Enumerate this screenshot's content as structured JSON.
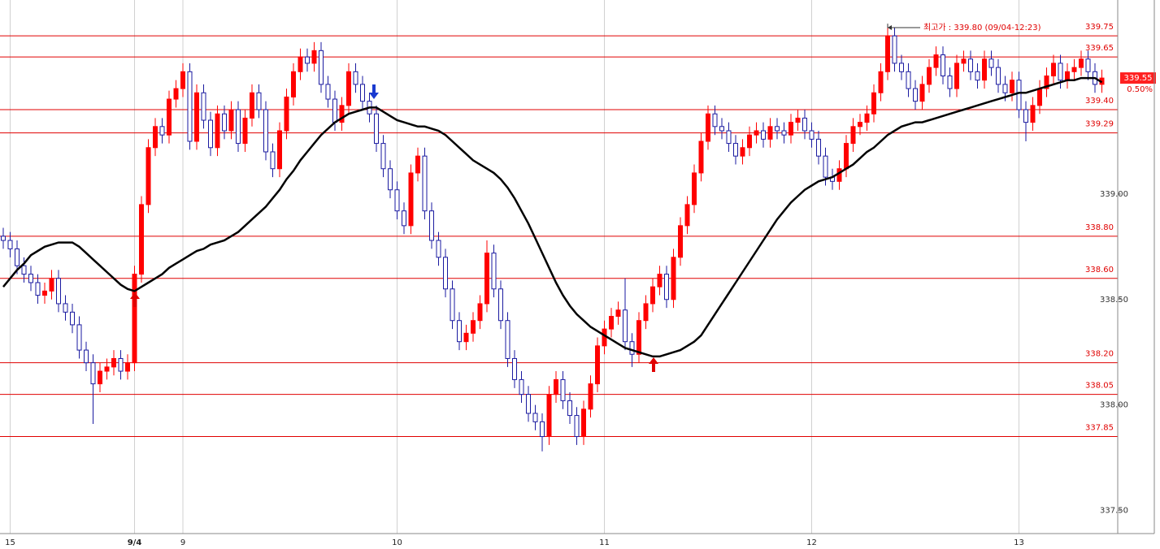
{
  "chart_data": {
    "type": "candlestick",
    "up_color": "#ff0000",
    "down_color": "#1a1aa0",
    "level_color": "#e00000",
    "ylim": [
      337.39,
      339.92
    ],
    "yticks": [
      {
        "value": 337.5,
        "label": "337.50"
      },
      {
        "value": 338.0,
        "label": "338.00"
      },
      {
        "value": 338.5,
        "label": "338.50"
      },
      {
        "value": 339.0,
        "label": "339.00"
      }
    ],
    "levels": [
      {
        "value": 339.75,
        "label": "339.75"
      },
      {
        "value": 339.65,
        "label": "339.65"
      },
      {
        "value": 339.4,
        "label": "339.40"
      },
      {
        "value": 339.29,
        "label": "339.29"
      },
      {
        "value": 338.8,
        "label": "338.80"
      },
      {
        "value": 338.6,
        "label": "338.60"
      },
      {
        "value": 338.2,
        "label": "338.20"
      },
      {
        "value": 338.05,
        "label": "338.05"
      },
      {
        "value": 337.85,
        "label": "337.85"
      }
    ],
    "last_price": {
      "value": 339.55,
      "label": "339.55"
    },
    "change_label": "0.50%",
    "annotation": "최고가 : 339.80 (09/04-12:23)",
    "grid": true,
    "categories": [
      null,
      "15",
      null,
      null,
      null,
      null,
      null,
      null,
      null,
      null,
      null,
      null,
      null,
      null,
      null,
      null,
      null,
      null,
      null,
      "9/4",
      null,
      null,
      null,
      null,
      null,
      null,
      "9",
      null,
      null,
      null,
      null,
      null,
      null,
      null,
      null,
      null,
      null,
      null,
      null,
      null,
      null,
      null,
      null,
      null,
      null,
      null,
      null,
      null,
      null,
      null,
      null,
      null,
      null,
      null,
      null,
      null,
      null,
      "10",
      null,
      null,
      null,
      null,
      null,
      null,
      null,
      null,
      null,
      null,
      null,
      null,
      null,
      null,
      null,
      null,
      null,
      null,
      null,
      null,
      null,
      null,
      null,
      null,
      null,
      null,
      null,
      null,
      null,
      "11",
      null,
      null,
      null,
      null,
      null,
      null,
      null,
      null,
      null,
      null,
      null,
      null,
      null,
      null,
      null,
      null,
      null,
      null,
      null,
      null,
      null,
      null,
      null,
      null,
      null,
      null,
      null,
      null,
      null,
      "12",
      null,
      null,
      null,
      null,
      null,
      null,
      null,
      null,
      null,
      null,
      null,
      null,
      null,
      null,
      null,
      null,
      null,
      null,
      null,
      null,
      null,
      null,
      null,
      null,
      null,
      null,
      null,
      null,
      null,
      "13",
      null,
      null,
      null,
      null,
      null,
      null,
      null,
      null,
      null,
      null,
      null,
      null
    ],
    "open": [
      338.8,
      338.78,
      338.74,
      338.66,
      338.62,
      338.58,
      338.52,
      338.54,
      338.6,
      338.48,
      338.44,
      338.38,
      338.26,
      338.2,
      338.1,
      338.16,
      338.18,
      338.22,
      338.16,
      338.2,
      338.62,
      338.95,
      339.22,
      339.32,
      339.28,
      339.45,
      339.5,
      339.58,
      339.25,
      339.48,
      339.35,
      339.22,
      339.38,
      339.3,
      339.4,
      339.24,
      339.36,
      339.48,
      339.4,
      339.2,
      339.12,
      339.3,
      339.46,
      339.58,
      339.65,
      339.62,
      339.68,
      339.52,
      339.45,
      339.34,
      339.42,
      339.58,
      339.52,
      339.44,
      339.38,
      339.24,
      339.12,
      339.02,
      338.92,
      338.85,
      339.1,
      339.18,
      338.92,
      338.78,
      338.7,
      338.55,
      338.4,
      338.3,
      338.34,
      338.4,
      338.48,
      338.72,
      338.55,
      338.4,
      338.22,
      338.12,
      338.05,
      337.96,
      337.92,
      337.85,
      338.05,
      338.12,
      338.02,
      337.95,
      337.85,
      337.98,
      338.1,
      338.28,
      338.36,
      338.42,
      338.45,
      338.3,
      338.24,
      338.4,
      338.48,
      338.56,
      338.62,
      338.5,
      338.7,
      338.85,
      338.95,
      339.1,
      339.25,
      339.38,
      339.32,
      339.3,
      339.24,
      339.18,
      339.22,
      339.28,
      339.3,
      339.26,
      339.32,
      339.3,
      339.28,
      339.34,
      339.36,
      339.3,
      339.26,
      339.18,
      339.08,
      339.06,
      339.12,
      339.24,
      339.32,
      339.34,
      339.38,
      339.48,
      339.58,
      339.75,
      339.62,
      339.58,
      339.5,
      339.44,
      339.52,
      339.6,
      339.66,
      339.56,
      339.5,
      339.62,
      339.64,
      339.58,
      339.54,
      339.64,
      339.6,
      339.52,
      339.48,
      339.54,
      339.4,
      339.34,
      339.42,
      339.5,
      339.56,
      339.62,
      339.54,
      339.58,
      339.6,
      339.64,
      339.58,
      339.52
    ],
    "high": [
      338.84,
      338.82,
      338.78,
      338.7,
      338.66,
      338.62,
      338.58,
      338.64,
      338.64,
      338.52,
      338.48,
      338.42,
      338.3,
      338.24,
      338.2,
      338.22,
      338.26,
      338.26,
      338.24,
      338.66,
      338.99,
      339.26,
      339.36,
      339.36,
      339.49,
      339.54,
      339.62,
      339.62,
      339.52,
      339.52,
      339.39,
      339.42,
      339.42,
      339.44,
      339.44,
      339.4,
      339.52,
      339.52,
      339.44,
      339.24,
      339.34,
      339.5,
      339.62,
      339.69,
      339.69,
      339.72,
      339.72,
      339.56,
      339.49,
      339.46,
      339.62,
      339.62,
      339.56,
      339.48,
      339.42,
      339.28,
      339.16,
      339.06,
      338.96,
      339.14,
      339.22,
      339.22,
      338.96,
      338.82,
      338.74,
      338.59,
      338.44,
      338.38,
      338.44,
      338.52,
      338.78,
      338.76,
      338.59,
      338.44,
      338.26,
      338.16,
      338.09,
      338.0,
      337.96,
      338.09,
      338.16,
      338.16,
      338.06,
      337.99,
      338.02,
      338.14,
      338.32,
      338.4,
      338.46,
      338.49,
      338.6,
      338.34,
      338.44,
      338.52,
      338.6,
      338.66,
      338.66,
      338.74,
      338.89,
      338.99,
      339.14,
      339.29,
      339.42,
      339.42,
      339.36,
      339.34,
      339.28,
      339.26,
      339.32,
      339.34,
      339.34,
      339.36,
      339.36,
      339.34,
      339.38,
      339.4,
      339.4,
      339.34,
      339.3,
      339.22,
      339.12,
      339.16,
      339.28,
      339.36,
      339.38,
      339.42,
      339.52,
      339.62,
      339.8,
      339.79,
      339.66,
      339.62,
      339.54,
      339.56,
      339.64,
      339.7,
      339.7,
      339.6,
      339.66,
      339.68,
      339.68,
      339.62,
      339.68,
      339.68,
      339.64,
      339.56,
      339.58,
      339.58,
      339.44,
      339.46,
      339.54,
      339.6,
      339.66,
      339.66,
      339.62,
      339.64,
      339.68,
      339.68,
      339.62,
      339.59
    ],
    "low": [
      338.74,
      338.7,
      338.62,
      338.58,
      338.54,
      338.48,
      338.48,
      338.5,
      338.44,
      338.4,
      338.34,
      338.22,
      338.16,
      337.91,
      338.06,
      338.12,
      338.14,
      338.12,
      338.12,
      338.16,
      338.58,
      338.91,
      339.18,
      339.24,
      339.24,
      339.41,
      339.46,
      339.21,
      339.21,
      339.31,
      339.18,
      339.18,
      339.26,
      339.26,
      339.2,
      339.2,
      339.32,
      339.36,
      339.16,
      339.08,
      339.08,
      339.26,
      339.42,
      339.54,
      339.58,
      339.58,
      339.48,
      339.41,
      339.3,
      339.3,
      339.38,
      339.48,
      339.4,
      339.34,
      339.2,
      339.08,
      338.98,
      338.88,
      338.81,
      338.81,
      339.06,
      338.88,
      338.74,
      338.66,
      338.51,
      338.36,
      338.26,
      338.26,
      338.3,
      338.36,
      338.44,
      338.51,
      338.36,
      338.18,
      338.08,
      338.01,
      337.92,
      337.88,
      337.78,
      337.81,
      338.01,
      337.98,
      337.91,
      337.81,
      337.81,
      337.94,
      338.06,
      338.24,
      338.32,
      338.38,
      338.26,
      338.18,
      338.2,
      338.36,
      338.44,
      338.52,
      338.46,
      338.46,
      338.66,
      338.81,
      338.91,
      339.06,
      339.21,
      339.28,
      339.26,
      339.2,
      339.14,
      339.14,
      339.18,
      339.24,
      339.22,
      339.22,
      339.26,
      339.24,
      339.24,
      339.3,
      339.26,
      339.22,
      339.14,
      339.04,
      339.02,
      339.02,
      339.08,
      339.2,
      339.28,
      339.3,
      339.34,
      339.44,
      339.54,
      339.58,
      339.54,
      339.46,
      339.4,
      339.4,
      339.48,
      339.56,
      339.52,
      339.46,
      339.46,
      339.58,
      339.54,
      339.5,
      339.5,
      339.56,
      339.48,
      339.44,
      339.44,
      339.36,
      339.25,
      339.3,
      339.38,
      339.46,
      339.52,
      339.5,
      339.5,
      339.54,
      339.56,
      339.54,
      339.48,
      339.48
    ],
    "close": [
      338.78,
      338.74,
      338.66,
      338.62,
      338.58,
      338.52,
      338.54,
      338.6,
      338.48,
      338.44,
      338.38,
      338.26,
      338.2,
      338.1,
      338.16,
      338.18,
      338.22,
      338.16,
      338.2,
      338.62,
      338.95,
      339.22,
      339.32,
      339.28,
      339.45,
      339.5,
      339.58,
      339.25,
      339.48,
      339.35,
      339.22,
      339.38,
      339.3,
      339.4,
      339.24,
      339.36,
      339.48,
      339.4,
      339.2,
      339.12,
      339.3,
      339.46,
      339.58,
      339.65,
      339.62,
      339.68,
      339.52,
      339.45,
      339.34,
      339.42,
      339.58,
      339.52,
      339.44,
      339.38,
      339.24,
      339.12,
      339.02,
      338.92,
      338.85,
      339.1,
      339.18,
      338.92,
      338.78,
      338.7,
      338.55,
      338.4,
      338.3,
      338.34,
      338.4,
      338.48,
      338.72,
      338.55,
      338.4,
      338.22,
      338.12,
      338.05,
      337.96,
      337.92,
      337.85,
      338.05,
      338.12,
      338.02,
      337.95,
      337.85,
      337.98,
      338.1,
      338.28,
      338.36,
      338.42,
      338.45,
      338.3,
      338.24,
      338.4,
      338.48,
      338.56,
      338.62,
      338.5,
      338.7,
      338.85,
      338.95,
      339.1,
      339.25,
      339.38,
      339.32,
      339.3,
      339.24,
      339.18,
      339.22,
      339.28,
      339.3,
      339.26,
      339.32,
      339.3,
      339.28,
      339.34,
      339.36,
      339.3,
      339.26,
      339.18,
      339.08,
      339.06,
      339.12,
      339.24,
      339.32,
      339.34,
      339.38,
      339.48,
      339.58,
      339.75,
      339.62,
      339.58,
      339.5,
      339.44,
      339.52,
      339.6,
      339.66,
      339.56,
      339.5,
      339.62,
      339.64,
      339.58,
      339.54,
      339.64,
      339.6,
      339.52,
      339.48,
      339.54,
      339.4,
      339.34,
      339.42,
      339.5,
      339.56,
      339.62,
      339.54,
      339.58,
      339.6,
      339.64,
      339.58,
      339.52,
      339.55
    ],
    "moving_average": {
      "color": "#000000",
      "values": [
        338.56,
        338.6,
        338.64,
        338.67,
        338.71,
        338.73,
        338.75,
        338.76,
        338.77,
        338.77,
        338.77,
        338.75,
        338.72,
        338.69,
        338.66,
        338.63,
        338.6,
        338.57,
        338.55,
        338.54,
        338.56,
        338.58,
        338.6,
        338.62,
        338.65,
        338.67,
        338.69,
        338.71,
        338.73,
        338.74,
        338.76,
        338.77,
        338.78,
        338.8,
        338.82,
        338.85,
        338.88,
        338.91,
        338.94,
        338.98,
        339.02,
        339.07,
        339.11,
        339.16,
        339.2,
        339.24,
        339.28,
        339.31,
        339.34,
        339.36,
        339.38,
        339.39,
        339.4,
        339.41,
        339.41,
        339.39,
        339.37,
        339.35,
        339.34,
        339.33,
        339.32,
        339.32,
        339.31,
        339.3,
        339.28,
        339.25,
        339.22,
        339.19,
        339.16,
        339.14,
        339.12,
        339.1,
        339.07,
        339.03,
        338.98,
        338.92,
        338.86,
        338.79,
        338.72,
        338.65,
        338.58,
        338.52,
        338.47,
        338.43,
        338.4,
        338.37,
        338.35,
        338.33,
        338.31,
        338.29,
        338.27,
        338.26,
        338.25,
        338.24,
        338.23,
        338.23,
        338.24,
        338.25,
        338.26,
        338.28,
        338.3,
        338.33,
        338.38,
        338.43,
        338.48,
        338.53,
        338.58,
        338.63,
        338.68,
        338.73,
        338.78,
        338.83,
        338.88,
        338.92,
        338.96,
        338.99,
        339.02,
        339.04,
        339.06,
        339.07,
        339.08,
        339.1,
        339.12,
        339.14,
        339.17,
        339.2,
        339.22,
        339.25,
        339.28,
        339.3,
        339.32,
        339.33,
        339.34,
        339.34,
        339.35,
        339.36,
        339.37,
        339.38,
        339.39,
        339.4,
        339.41,
        339.42,
        339.43,
        339.44,
        339.45,
        339.46,
        339.47,
        339.48,
        339.48,
        339.49,
        339.5,
        339.51,
        339.52,
        339.53,
        339.54,
        339.54,
        339.55,
        339.55,
        339.55,
        339.53
      ]
    }
  }
}
